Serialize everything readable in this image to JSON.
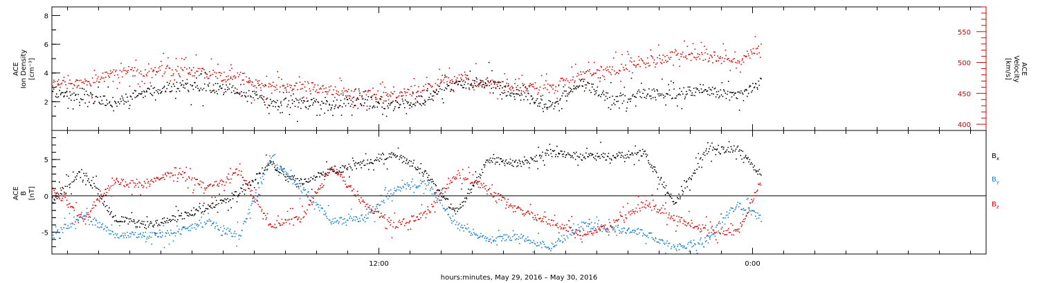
{
  "xaxis": {
    "label": "hours:minutes, May 29, 2016 – May 30, 2016",
    "tick_labels": [
      "12:00",
      "0:00"
    ],
    "major_hours": [
      12,
      24
    ],
    "range_hours": [
      1.5,
      31.5
    ]
  },
  "panels": [
    {
      "id": "density-velocity",
      "left_axis": {
        "label_lines": [
          "ACE",
          "Ion Density"
        ],
        "unit": "[cm⁻³]",
        "range": [
          0,
          8.6
        ],
        "ticks": [
          "2",
          "4",
          "6",
          "8"
        ],
        "color": "#000000"
      },
      "right_axis": {
        "label_lines": [
          "ACE",
          "Velocity"
        ],
        "unit": "[km/s]",
        "range": [
          390,
          590
        ],
        "ticks": [
          "400",
          "450",
          "500",
          "550"
        ],
        "color": "#cc0000"
      }
    },
    {
      "id": "magnetic-field",
      "left_axis": {
        "label_lines": [
          "ACE",
          "B"
        ],
        "unit": "[nT]",
        "range": [
          -8,
          9
        ],
        "ticks": [
          "-5",
          "0",
          "5"
        ],
        "color": "#000000"
      },
      "legend": [
        {
          "base": "B",
          "sub": "x",
          "color": "#000000"
        },
        {
          "base": "B",
          "sub": "y",
          "color": "#1a80d0"
        },
        {
          "base": "B",
          "sub": "z",
          "color": "#e00000"
        }
      ]
    }
  ],
  "chart_data": [
    {
      "type": "scatter",
      "title": "",
      "xlabel": "hours:minutes, May 29, 2016 – May 30, 2016",
      "ylabel": "ACE Ion Density [cm⁻³]",
      "y2label": "ACE Velocity [km/s]",
      "ylim": [
        0,
        8.6
      ],
      "y2lim": [
        390,
        590
      ],
      "grid": false,
      "series": [
        {
          "name": "Ion Density",
          "axis": "left",
          "color": "#000000",
          "x": [
            1.5,
            2.5,
            3.5,
            4.5,
            5.5,
            6.5,
            7.5,
            8.5,
            9.5,
            10.5,
            11.5,
            12.5,
            13.5,
            14.5,
            15.5,
            16.5,
            17.5,
            18.5,
            19.5,
            20.5,
            21.5,
            22.5,
            23.5,
            24.25
          ],
          "y": [
            2.6,
            2.3,
            2.0,
            2.7,
            3.1,
            3.0,
            2.9,
            2.0,
            1.9,
            1.8,
            2.1,
            1.8,
            2.2,
            3.3,
            3.4,
            2.5,
            1.7,
            3.4,
            2.1,
            2.6,
            2.6,
            2.9,
            2.3,
            3.4
          ]
        },
        {
          "name": "Velocity",
          "axis": "right",
          "color": "#e00000",
          "x": [
            1.5,
            2.5,
            3.5,
            4.5,
            5.5,
            6.5,
            7.5,
            8.5,
            9.5,
            10.5,
            11.5,
            12.5,
            13.5,
            14.5,
            15.5,
            16.5,
            17.5,
            18.5,
            19.5,
            20.5,
            21.5,
            22.5,
            23.5,
            24.25
          ],
          "y": [
            466,
            467,
            483,
            486,
            488,
            482,
            475,
            458,
            464,
            455,
            448,
            446,
            460,
            476,
            466,
            461,
            460,
            480,
            489,
            500,
            512,
            510,
            502,
            525
          ]
        }
      ]
    },
    {
      "type": "scatter",
      "title": "",
      "xlabel": "hours:minutes, May 29, 2016 – May 30, 2016",
      "ylabel": "ACE B [nT]",
      "ylim": [
        -8,
        9
      ],
      "grid": false,
      "reference_line": 0,
      "series": [
        {
          "name": "Bx",
          "color": "#000000",
          "x": [
            1.5,
            2.5,
            3.5,
            4.5,
            5.5,
            6.5,
            7.5,
            8.5,
            9.5,
            10.5,
            11.5,
            12.5,
            13.5,
            14.5,
            15.5,
            16.5,
            17.5,
            18.5,
            19.5,
            20.5,
            21.5,
            22.5,
            23.5,
            24.25
          ],
          "y": [
            -0.5,
            3.5,
            -3,
            -4,
            -3,
            -1.5,
            0.5,
            4.5,
            2,
            3.5,
            4.5,
            5.8,
            3,
            -2.5,
            5,
            4.5,
            6,
            5.5,
            5.5,
            6,
            -1,
            6.2,
            6.5,
            3
          ]
        },
        {
          "name": "By",
          "color": "#1a80d0",
          "x": [
            1.5,
            2.5,
            3.5,
            4.5,
            5.5,
            6.5,
            7.5,
            8.5,
            9.5,
            10.5,
            11.5,
            12.5,
            13.5,
            14.5,
            15.5,
            16.5,
            17.5,
            18.5,
            19.5,
            20.5,
            21.5,
            22.5,
            23.5,
            24.25
          ],
          "y": [
            -5.5,
            -2.5,
            -5.2,
            -5.3,
            -5,
            -3.5,
            -5.5,
            5,
            1,
            -3.5,
            -3,
            1,
            2,
            -4,
            -6,
            -5.5,
            -7,
            -4,
            -4.5,
            -5,
            -7,
            -6,
            -1,
            -3
          ]
        },
        {
          "name": "Bz",
          "color": "#e00000",
          "x": [
            1.5,
            2.5,
            3.5,
            4.5,
            5.5,
            6.5,
            7.5,
            8.5,
            9.5,
            10.5,
            11.5,
            12.5,
            13.5,
            14.5,
            15.5,
            16.5,
            17.5,
            18.5,
            19.5,
            20.5,
            21.5,
            22.5,
            23.5,
            24.25
          ],
          "y": [
            1,
            -3,
            2,
            1.5,
            3.5,
            1,
            3.5,
            -4,
            -3,
            4,
            -1,
            -4,
            -2.5,
            3,
            1,
            -2,
            -3.5,
            -5,
            -4,
            -1,
            -3,
            -4.5,
            -5,
            2
          ]
        }
      ]
    }
  ]
}
